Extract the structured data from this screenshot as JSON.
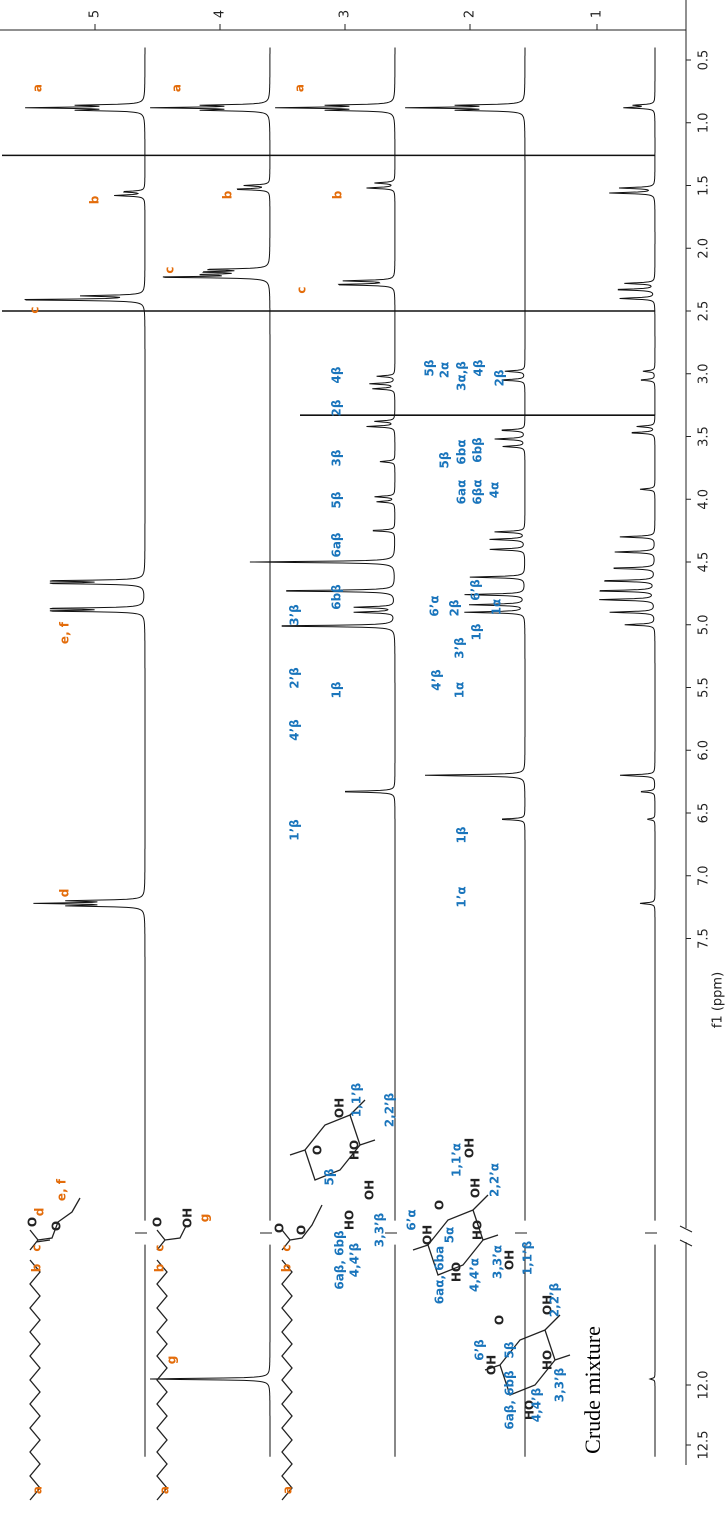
{
  "axis": {
    "ticks": [
      "0.5",
      "1.0",
      "1.5",
      "2.0",
      "2.5",
      "3.0",
      "3.5",
      "4.0",
      "4.5",
      "5.0",
      "5.5",
      "6.0",
      "6.5",
      "7.0",
      "7.5",
      "12.0",
      "12.5"
    ],
    "label": "f1 (ppm)"
  },
  "traces": [
    {
      "number": "5",
      "peak_labels": [
        "a",
        "b",
        "c",
        "e, f",
        "d"
      ],
      "structure_labels": [
        "a",
        "b",
        "c",
        "O",
        "O",
        "d",
        "e, f"
      ]
    },
    {
      "number": "4",
      "peak_labels": [
        "a",
        "b",
        "c",
        "g"
      ],
      "structure_labels": [
        "a",
        "b",
        "c",
        "O",
        "OH",
        "g"
      ]
    },
    {
      "number": "3",
      "peak_labels": [
        "a",
        "b",
        "c",
        "4β",
        "2β",
        "3β",
        "5β",
        "6aβ",
        "6bβ",
        "3’β",
        "2’β",
        "1β",
        "4’β",
        "1’β"
      ],
      "structure_labels": [
        "a",
        "b",
        "c",
        "O",
        "O",
        "6aβ, 6bβ",
        "4,4’β",
        "HO",
        "5β",
        "O",
        "OH",
        "1,1’β",
        "HO",
        "OH",
        "3,3’β",
        "2,2’β"
      ]
    },
    {
      "number": "2",
      "peak_labels": [
        "5β",
        "2α",
        "3α,β",
        "4β",
        "2β",
        "5β",
        "6bα",
        "6aα",
        "6bβ",
        "6βα",
        "4α",
        "6’α",
        "2β",
        "6’β",
        "1α",
        "4’β",
        "3’β",
        "1α",
        "1β",
        "1β",
        "1’α"
      ],
      "structure_labels": [
        "6’α",
        "OH",
        "6aα, 6ba",
        "O",
        "5α",
        "1,1’α",
        "OH",
        "HO",
        "OH",
        "4,4’α",
        "HO",
        "2,2’α",
        "3,3’α"
      ]
    },
    {
      "number": "1",
      "structure_labels": [
        "6’β",
        "OH",
        "O",
        "5β",
        "6aβ, 6bβ",
        "OH",
        "1,1’β",
        "HO",
        "4,4’β",
        "OH",
        "HO",
        "2,2’β",
        "3,3’β"
      ]
    }
  ],
  "caption": "Crude mixture"
}
